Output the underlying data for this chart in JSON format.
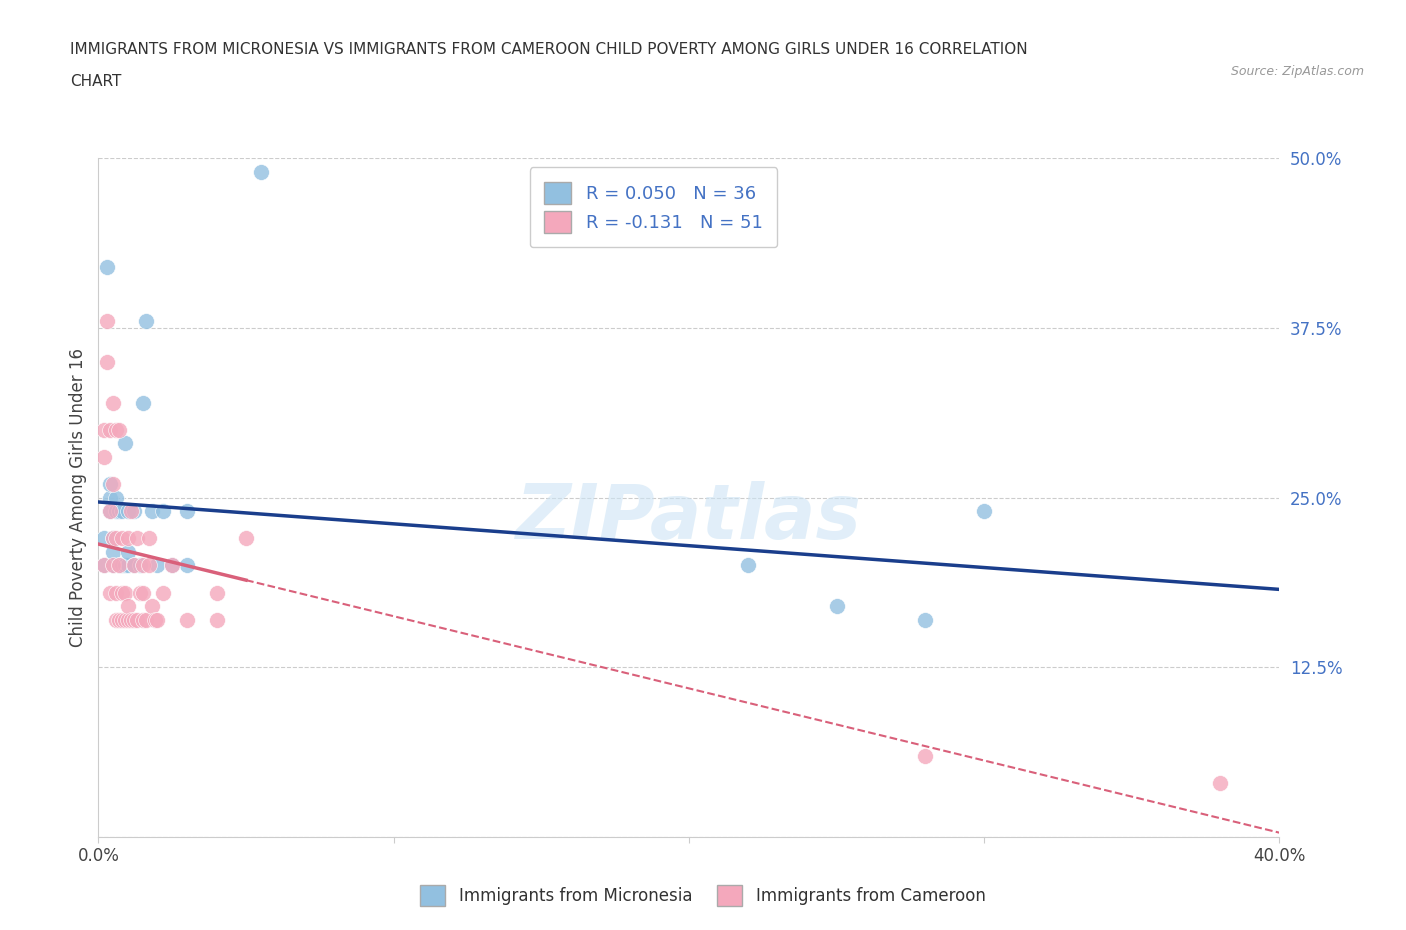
{
  "title_line1": "IMMIGRANTS FROM MICRONESIA VS IMMIGRANTS FROM CAMEROON CHILD POVERTY AMONG GIRLS UNDER 16 CORRELATION",
  "title_line2": "CHART",
  "source": "Source: ZipAtlas.com",
  "ylabel": "Child Poverty Among Girls Under 16",
  "xlim": [
    0.0,
    0.4
  ],
  "ylim": [
    0.0,
    0.5
  ],
  "xtick_vals": [
    0.0,
    0.1,
    0.2,
    0.3,
    0.4
  ],
  "xtick_labels": [
    "0.0%",
    "",
    "",
    "",
    "40.0%"
  ],
  "ytick_vals": [
    0.0,
    0.125,
    0.25,
    0.375,
    0.5
  ],
  "ytick_labels": [
    "",
    "12.5%",
    "25.0%",
    "37.5%",
    "50.0%"
  ],
  "R_micro": 0.05,
  "N_micro": 36,
  "R_cam": -0.131,
  "N_cam": 51,
  "blue_color": "#92c0e0",
  "pink_color": "#f4a8bc",
  "trend_blue": "#1a3e8c",
  "trend_pink": "#d9607a",
  "legend_label_micro": "Immigrants from Micronesia",
  "legend_label_cam": "Immigrants from Cameroon",
  "watermark": "ZIPatlas",
  "micro_x": [
    0.002,
    0.002,
    0.003,
    0.004,
    0.004,
    0.004,
    0.005,
    0.005,
    0.005,
    0.006,
    0.006,
    0.007,
    0.007,
    0.008,
    0.008,
    0.009,
    0.009,
    0.01,
    0.01,
    0.01,
    0.012,
    0.012,
    0.014,
    0.015,
    0.016,
    0.018,
    0.02,
    0.022,
    0.025,
    0.03,
    0.03,
    0.055,
    0.22,
    0.25,
    0.28,
    0.3
  ],
  "micro_y": [
    0.2,
    0.22,
    0.42,
    0.24,
    0.25,
    0.26,
    0.2,
    0.21,
    0.22,
    0.24,
    0.25,
    0.2,
    0.24,
    0.2,
    0.24,
    0.2,
    0.29,
    0.2,
    0.21,
    0.24,
    0.2,
    0.24,
    0.2,
    0.32,
    0.38,
    0.24,
    0.2,
    0.24,
    0.2,
    0.2,
    0.24,
    0.49,
    0.2,
    0.17,
    0.16,
    0.24
  ],
  "cam_x": [
    0.002,
    0.002,
    0.002,
    0.003,
    0.003,
    0.004,
    0.004,
    0.004,
    0.005,
    0.005,
    0.005,
    0.005,
    0.006,
    0.006,
    0.006,
    0.006,
    0.007,
    0.007,
    0.007,
    0.008,
    0.008,
    0.008,
    0.009,
    0.009,
    0.01,
    0.01,
    0.01,
    0.011,
    0.011,
    0.012,
    0.012,
    0.013,
    0.013,
    0.014,
    0.015,
    0.015,
    0.015,
    0.016,
    0.017,
    0.017,
    0.018,
    0.019,
    0.02,
    0.022,
    0.025,
    0.03,
    0.04,
    0.04,
    0.05,
    0.28,
    0.38
  ],
  "cam_y": [
    0.2,
    0.28,
    0.3,
    0.35,
    0.38,
    0.18,
    0.24,
    0.3,
    0.2,
    0.22,
    0.26,
    0.32,
    0.16,
    0.18,
    0.22,
    0.3,
    0.16,
    0.2,
    0.3,
    0.16,
    0.18,
    0.22,
    0.16,
    0.18,
    0.16,
    0.17,
    0.22,
    0.16,
    0.24,
    0.16,
    0.2,
    0.16,
    0.22,
    0.18,
    0.16,
    0.18,
    0.2,
    0.16,
    0.2,
    0.22,
    0.17,
    0.16,
    0.16,
    0.18,
    0.2,
    0.16,
    0.16,
    0.18,
    0.22,
    0.06,
    0.04
  ]
}
